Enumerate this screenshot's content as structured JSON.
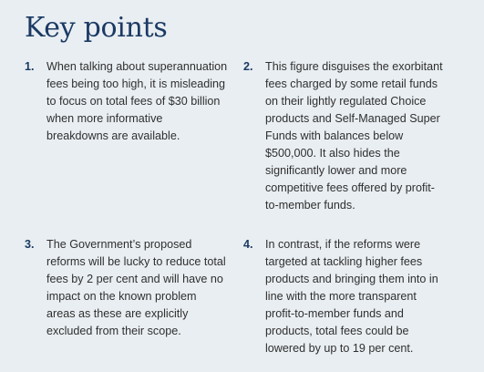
{
  "heading": "Key points",
  "points": [
    {
      "number": "1.",
      "lines": [
        "When talking about superannuation",
        "fees being too high, it is misleading",
        "to focus on total fees of $30 billion",
        "when more informative",
        "breakdowns are available."
      ]
    },
    {
      "number": "2.",
      "lines": [
        "This figure disguises the exorbitant",
        "fees charged by some retail funds",
        "on their lightly regulated Choice",
        "products and Self-Managed Super",
        "Funds with balances below",
        "$500,000. It also hides the",
        "significantly lower and more",
        "competitive fees offered by profit-",
        "to-member funds."
      ]
    },
    {
      "number": "3.",
      "lines": [
        "The Government’s proposed",
        "reforms will be lucky to reduce total",
        "fees by 2 per cent and will have no",
        "impact on the known problem",
        "areas as these are explicitly",
        "excluded from their scope."
      ]
    },
    {
      "number": "4.",
      "lines": [
        "In contrast, if the reforms were",
        "targeted at tackling higher fees",
        "products and bringing them into in",
        "line with the more transparent",
        "profit-to-member funds and",
        "products, total fees could be",
        "lowered by up to 19 per cent."
      ]
    }
  ]
}
